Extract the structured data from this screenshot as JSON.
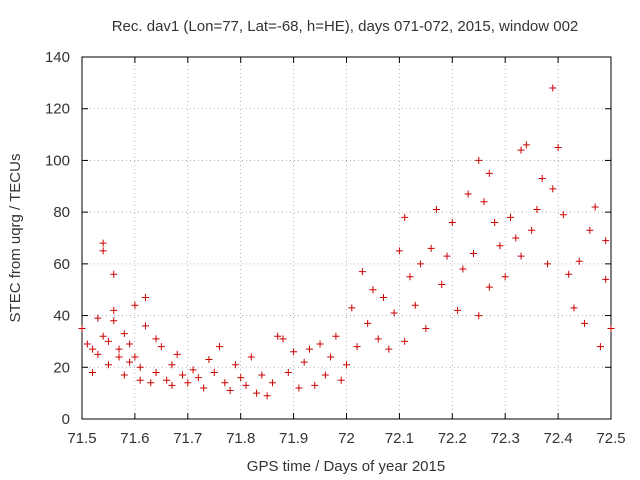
{
  "chart_data": {
    "type": "scatter",
    "title": "Rec. dav1 (Lon=77, Lat=-68, h=HE), days 071-072, 2015, window 002",
    "xlabel": "GPS time / Days of year 2015",
    "ylabel": "STEC from uqrg / TECUs",
    "xlim": [
      71.5,
      72.5
    ],
    "ylim": [
      0,
      140
    ],
    "xticks": [
      "71.5",
      "71.6",
      "71.7",
      "71.8",
      "71.9",
      "72",
      "72.1",
      "72.2",
      "72.3",
      "72.4",
      "72.5"
    ],
    "yticks": [
      "0",
      "20",
      "40",
      "60",
      "80",
      "100",
      "120",
      "140"
    ],
    "grid": true,
    "marker": "plus",
    "color": "#cc0000",
    "points": [
      [
        71.5,
        35
      ],
      [
        71.51,
        29
      ],
      [
        71.52,
        27
      ],
      [
        71.52,
        18
      ],
      [
        71.53,
        39
      ],
      [
        71.53,
        25
      ],
      [
        71.54,
        68
      ],
      [
        71.54,
        65
      ],
      [
        71.54,
        32
      ],
      [
        71.55,
        30
      ],
      [
        71.55,
        21
      ],
      [
        71.56,
        56
      ],
      [
        71.56,
        42
      ],
      [
        71.56,
        38
      ],
      [
        71.57,
        27
      ],
      [
        71.57,
        24
      ],
      [
        71.58,
        33
      ],
      [
        71.58,
        17
      ],
      [
        71.59,
        29
      ],
      [
        71.59,
        22
      ],
      [
        71.6,
        44
      ],
      [
        71.6,
        24
      ],
      [
        71.61,
        20
      ],
      [
        71.61,
        15
      ],
      [
        71.62,
        47
      ],
      [
        71.62,
        36
      ],
      [
        71.63,
        14
      ],
      [
        71.64,
        31
      ],
      [
        71.64,
        18
      ],
      [
        71.65,
        28
      ],
      [
        71.66,
        15
      ],
      [
        71.67,
        21
      ],
      [
        71.67,
        13
      ],
      [
        71.68,
        25
      ],
      [
        71.69,
        17
      ],
      [
        71.7,
        14
      ],
      [
        71.71,
        19
      ],
      [
        71.72,
        16
      ],
      [
        71.73,
        12
      ],
      [
        71.74,
        23
      ],
      [
        71.75,
        18
      ],
      [
        71.76,
        28
      ],
      [
        71.77,
        14
      ],
      [
        71.78,
        11
      ],
      [
        71.79,
        21
      ],
      [
        71.8,
        16
      ],
      [
        71.81,
        13
      ],
      [
        71.82,
        24
      ],
      [
        71.83,
        10
      ],
      [
        71.84,
        17
      ],
      [
        71.85,
        9
      ],
      [
        71.86,
        14
      ],
      [
        71.87,
        32
      ],
      [
        71.88,
        31
      ],
      [
        71.89,
        18
      ],
      [
        71.9,
        26
      ],
      [
        71.91,
        12
      ],
      [
        71.92,
        22
      ],
      [
        71.93,
        27
      ],
      [
        71.94,
        13
      ],
      [
        71.95,
        29
      ],
      [
        71.96,
        17
      ],
      [
        71.97,
        24
      ],
      [
        71.98,
        32
      ],
      [
        71.99,
        15
      ],
      [
        72.0,
        21
      ],
      [
        72.01,
        43
      ],
      [
        72.02,
        28
      ],
      [
        72.03,
        57
      ],
      [
        72.04,
        37
      ],
      [
        72.05,
        50
      ],
      [
        72.06,
        31
      ],
      [
        72.07,
        47
      ],
      [
        72.08,
        27
      ],
      [
        72.09,
        41
      ],
      [
        72.1,
        65
      ],
      [
        72.11,
        78
      ],
      [
        72.11,
        30
      ],
      [
        72.12,
        55
      ],
      [
        72.13,
        44
      ],
      [
        72.14,
        60
      ],
      [
        72.15,
        35
      ],
      [
        72.16,
        66
      ],
      [
        72.17,
        81
      ],
      [
        72.18,
        52
      ],
      [
        72.19,
        63
      ],
      [
        72.2,
        76
      ],
      [
        72.21,
        42
      ],
      [
        72.22,
        58
      ],
      [
        72.23,
        87
      ],
      [
        72.24,
        64
      ],
      [
        72.25,
        100
      ],
      [
        72.25,
        40
      ],
      [
        72.26,
        84
      ],
      [
        72.27,
        95
      ],
      [
        72.27,
        51
      ],
      [
        72.28,
        76
      ],
      [
        72.29,
        67
      ],
      [
        72.3,
        55
      ],
      [
        72.31,
        78
      ],
      [
        72.32,
        70
      ],
      [
        72.33,
        104
      ],
      [
        72.33,
        63
      ],
      [
        72.34,
        106
      ],
      [
        72.35,
        73
      ],
      [
        72.36,
        81
      ],
      [
        72.37,
        93
      ],
      [
        72.38,
        60
      ],
      [
        72.39,
        89
      ],
      [
        72.39,
        128
      ],
      [
        72.4,
        105
      ],
      [
        72.41,
        79
      ],
      [
        72.42,
        56
      ],
      [
        72.43,
        43
      ],
      [
        72.44,
        61
      ],
      [
        72.45,
        37
      ],
      [
        72.46,
        73
      ],
      [
        72.47,
        82
      ],
      [
        72.48,
        28
      ],
      [
        72.49,
        69
      ],
      [
        72.49,
        54
      ],
      [
        72.5,
        35
      ]
    ]
  }
}
